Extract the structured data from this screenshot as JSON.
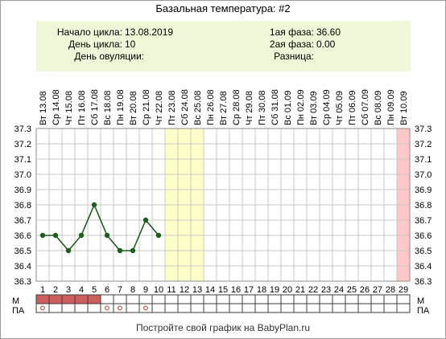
{
  "title": "Базальная температура: #2",
  "info": {
    "cycle_start_label": "Начало цикла:",
    "cycle_start_value": "13.08.2019",
    "cycle_day_label": "День цикла:",
    "cycle_day_value": "10",
    "ovulation_day_label": "День овуляции:",
    "ovulation_day_value": "",
    "phase1_label": "1ая фаза:",
    "phase1_value": "36.60",
    "phase2_label": "2ая фаза:",
    "phase2_value": "0.00",
    "difference_label": "Разница:",
    "difference_value": ""
  },
  "row_labels": {
    "m": "М",
    "pa": "ПА"
  },
  "footer": "Постройте свой график на BabyPlan.ru",
  "colors": {
    "line": "#1d5e1d",
    "fertile_band": "#ffffc8",
    "last_day_band": "#ffc8c8",
    "menstruation": "#cd5c5c",
    "pa_marker": "#c0392b",
    "info_bg": "#eef7d8"
  },
  "chart_data": {
    "type": "line",
    "title": "Базальная температура: #2",
    "x_dates": [
      "Вт 13.08",
      "Ср 14.08",
      "Чт 15.08",
      "Пт 16.08",
      "Сб 17.08",
      "Вс 18.08",
      "Пн 19.08",
      "Вт 20.08",
      "Ср 21.08",
      "Чт 22.08",
      "Пт 23.08",
      "Сб 24.08",
      "Вс 25.08",
      "Пн 26.08",
      "Вт 27.08",
      "Ср 28.08",
      "Чт 29.08",
      "Пт 30.08",
      "Сб 31.08",
      "Вс 01.09",
      "Пн 02.09",
      "Вт 03.09",
      "Ср 04.09",
      "Чт 05.09",
      "Пт 06.09",
      "Сб 07.09",
      "Вс 08.09",
      "Пн 09.09",
      "Вт 10.09"
    ],
    "x_days": [
      "1",
      "2",
      "3",
      "4",
      "5",
      "6",
      "7",
      "8",
      "9",
      "10",
      "11",
      "12",
      "13",
      "14",
      "15",
      "16",
      "17",
      "18",
      "19",
      "20",
      "21",
      "22",
      "23",
      "24",
      "25",
      "26",
      "27",
      "28",
      "29"
    ],
    "y_ticks": [
      "36.3",
      "36.4",
      "36.5",
      "36.6",
      "36.7",
      "36.8",
      "36.9",
      "37.0",
      "37.1",
      "37.2",
      "37.3"
    ],
    "ylim": [
      36.3,
      37.3
    ],
    "series": [
      {
        "values": [
          36.6,
          36.6,
          36.5,
          36.6,
          36.8,
          36.6,
          36.5,
          36.5,
          36.7,
          36.6
        ]
      }
    ],
    "fertile_days": [
      11,
      12,
      13
    ],
    "highlight_days": [
      29
    ],
    "menstruation_days": [
      1,
      2,
      3,
      4,
      5
    ],
    "pa_days": [
      1,
      6,
      7,
      9
    ],
    "grid": true
  }
}
